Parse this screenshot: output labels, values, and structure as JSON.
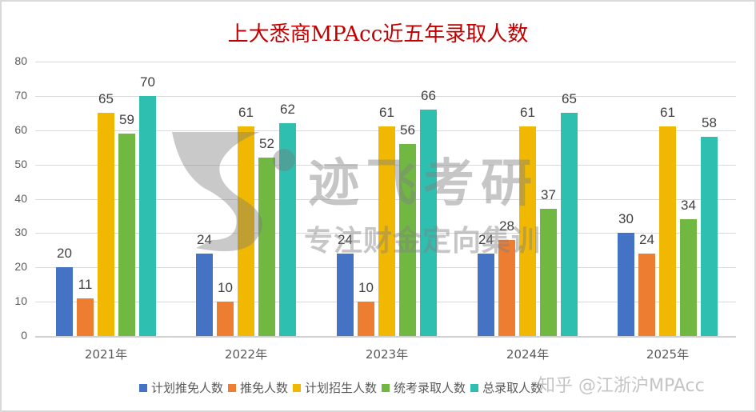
{
  "chart_data": {
    "type": "bar",
    "title": "上大悉商MPAcc近五年录取人数",
    "categories": [
      "2021年",
      "2022年",
      "2023年",
      "2024年",
      "2025年"
    ],
    "series": [
      {
        "name": "计划推免人数",
        "color": "#4472c4",
        "values": [
          20,
          24,
          24,
          24,
          30
        ]
      },
      {
        "name": "推免人数",
        "color": "#ed7d31",
        "values": [
          11,
          10,
          10,
          28,
          24
        ]
      },
      {
        "name": "计划招生人数",
        "color": "#f0b800",
        "values": [
          65,
          61,
          61,
          61,
          61
        ]
      },
      {
        "name": "统考录取人数",
        "color": "#70b842",
        "values": [
          59,
          52,
          56,
          37,
          34
        ]
      },
      {
        "name": "总录取人数",
        "color": "#2fbfb0",
        "values": [
          70,
          62,
          66,
          65,
          58
        ]
      }
    ],
    "xlabel": "",
    "ylabel": "",
    "ylim": [
      0,
      80
    ],
    "yticks": [
      0,
      10,
      20,
      30,
      40,
      50,
      60,
      70,
      80
    ],
    "grid": true,
    "legend_position": "bottom"
  },
  "watermark": {
    "main": "迹飞考研",
    "sub": "专注财金定向集训",
    "source": "知乎 @江浙沪MPAcc"
  }
}
